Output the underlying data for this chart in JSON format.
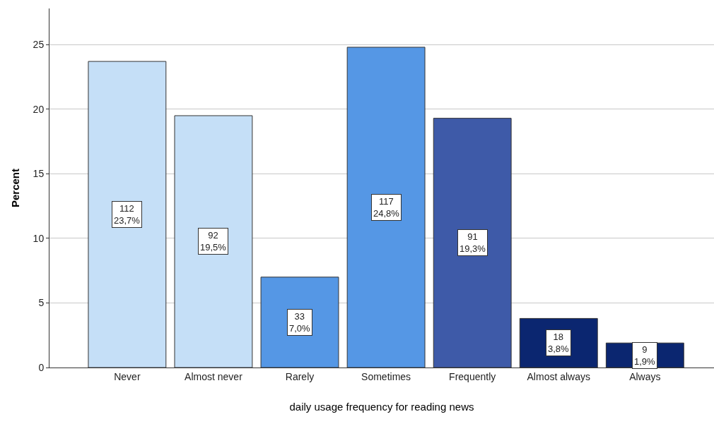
{
  "chart_data": {
    "type": "bar",
    "xlabel": "daily usage frequency for reading news",
    "ylabel": "Percent",
    "categories": [
      "Never",
      "Almost never",
      "Rarely",
      "Sometimes",
      "Frequently",
      "Almost always",
      "Always"
    ],
    "values": [
      23.7,
      19.5,
      7.0,
      24.8,
      19.3,
      3.8,
      1.9
    ],
    "colors": [
      "#c5dff7",
      "#c5dff7",
      "#5597e5",
      "#5597e5",
      "#3e5aa8",
      "#0b2670",
      "#0b2670"
    ],
    "value_labels": [
      "112\n23,7%",
      "92\n19,5%",
      "33\n7,0%",
      "117\n24,8%",
      "91\n19,3%",
      "18\n3,8%",
      "9\n1,9%"
    ],
    "ylim": [
      0,
      27.8
    ],
    "yticks": [
      0,
      5,
      10,
      15,
      20,
      25
    ],
    "grid": "y",
    "legend": false
  }
}
